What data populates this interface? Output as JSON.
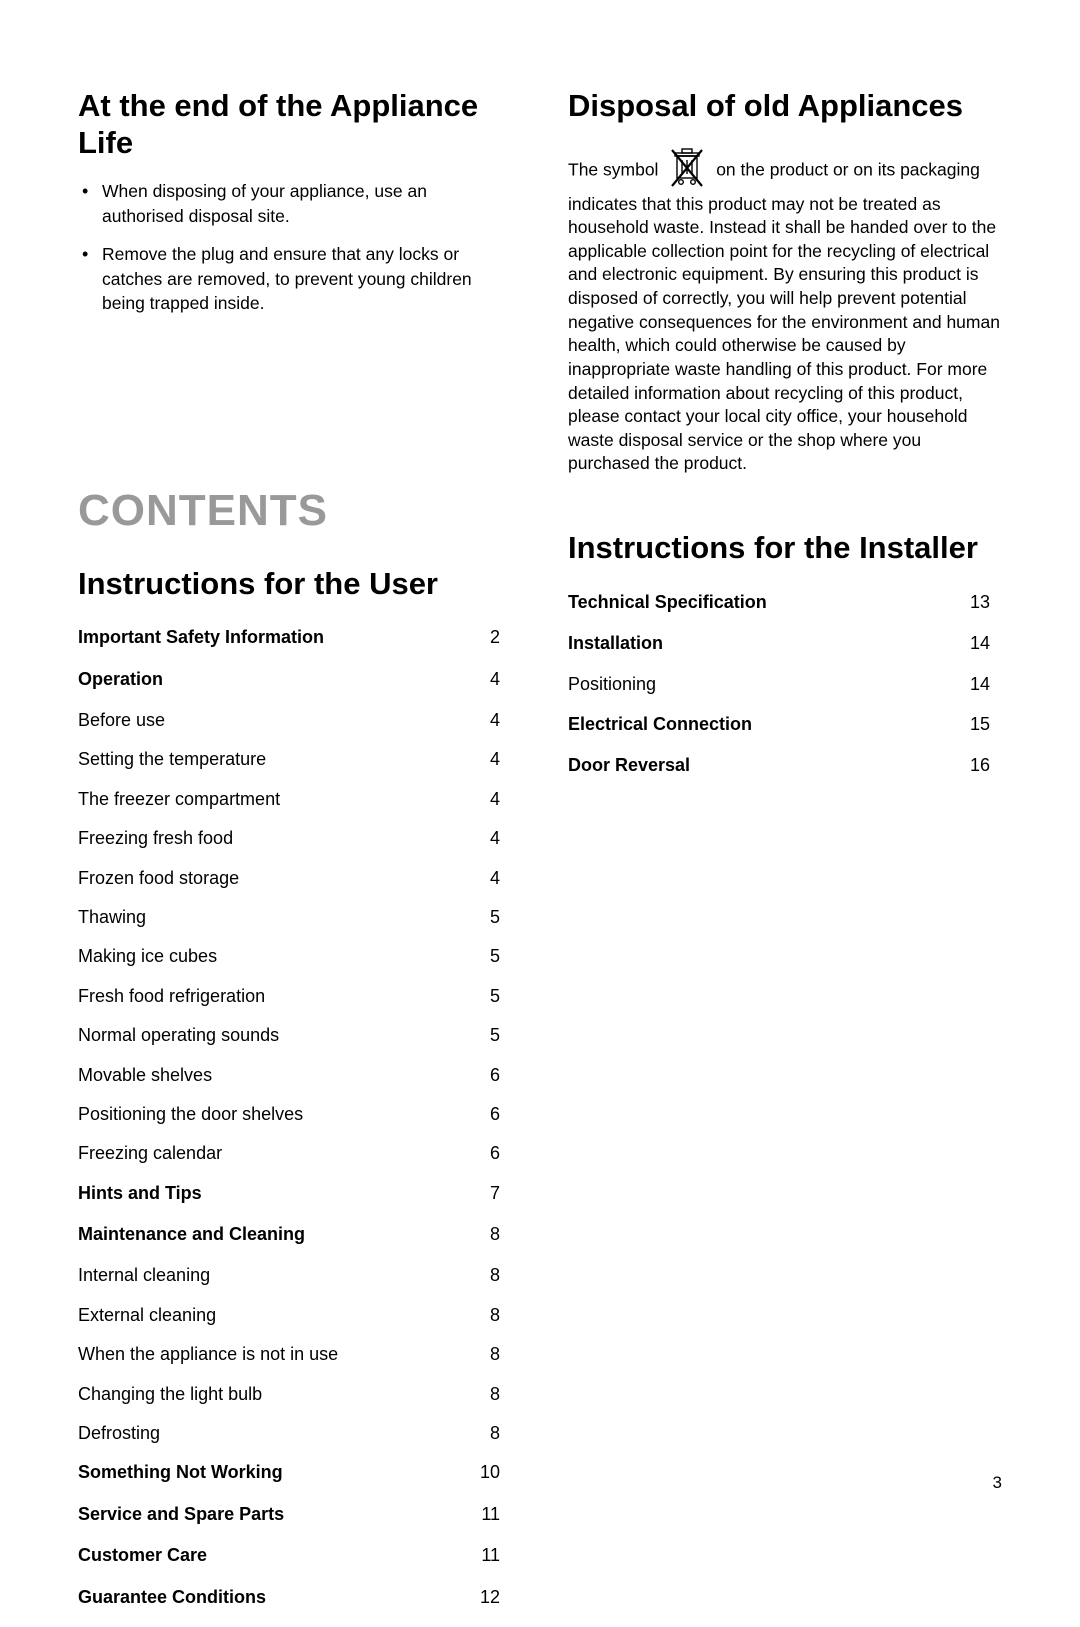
{
  "page_number": "3",
  "leftColumn": {
    "applianceLife": {
      "title": "At the end of the Appliance Life",
      "bullets": [
        "When disposing of your appliance, use an authorised disposal site.",
        "Remove the plug and ensure that any locks or catches are removed, to prevent young children being trapped inside."
      ]
    },
    "contents_title": "CONTENTS",
    "user_instructions_title": "Instructions for the User",
    "toc_user": [
      {
        "label": "Important Safety Information",
        "page": "2",
        "bold": true
      },
      {
        "label": "Operation",
        "page": "4",
        "bold": true
      },
      {
        "label": "Before use",
        "page": "4",
        "bold": false
      },
      {
        "label": "Setting the temperature",
        "page": "4",
        "bold": false
      },
      {
        "label": "The freezer compartment",
        "page": "4",
        "bold": false
      },
      {
        "label": "Freezing fresh food",
        "page": "4",
        "bold": false
      },
      {
        "label": "Frozen food storage",
        "page": "4",
        "bold": false
      },
      {
        "label": "Thawing",
        "page": "5",
        "bold": false
      },
      {
        "label": "Making ice cubes",
        "page": "5",
        "bold": false
      },
      {
        "label": "Fresh food refrigeration",
        "page": "5",
        "bold": false
      },
      {
        "label": "Normal operating sounds",
        "page": "5",
        "bold": false
      },
      {
        "label": "Movable shelves",
        "page": "6",
        "bold": false
      },
      {
        "label": "Positioning the door shelves",
        "page": "6",
        "bold": false
      },
      {
        "label": "Freezing calendar",
        "page": "6",
        "bold": false
      },
      {
        "label": "Hints and Tips",
        "page": "7",
        "bold": true
      },
      {
        "label": "Maintenance and Cleaning",
        "page": "8",
        "bold": true
      },
      {
        "label": "Internal cleaning",
        "page": "8",
        "bold": false
      },
      {
        "label": "External cleaning",
        "page": "8",
        "bold": false
      },
      {
        "label": "When the appliance is not in use",
        "page": "8",
        "bold": false
      },
      {
        "label": "Changing the light bulb",
        "page": "8",
        "bold": false
      },
      {
        "label": "Defrosting",
        "page": "8",
        "bold": false
      },
      {
        "label": "Something Not Working",
        "page": "10",
        "bold": true
      },
      {
        "label": "Service and Spare Parts",
        "page": "11",
        "bold": true
      },
      {
        "label": "Customer Care",
        "page": "11",
        "bold": true
      },
      {
        "label": "Guarantee Conditions",
        "page": "12",
        "bold": true
      }
    ]
  },
  "rightColumn": {
    "disposal": {
      "title": "Disposal of old Appliances",
      "text_before": "The symbol",
      "text_after": "on the product or on its packaging indicates that this product may not be treated as household waste. Instead it shall be handed over to the applicable collection point for the recycling of electrical and electronic equipment. By ensuring this product is disposed of correctly, you will help prevent potential negative consequences for the environment and human health, which could otherwise be caused by inappropriate waste handling of this product. For more detailed information about recycling of this product, please contact your local city office, your household waste disposal service or the shop where you purchased the product."
    },
    "installer_title": "Instructions for the Installer",
    "toc_installer": [
      {
        "label": "Technical Specification",
        "page": "13",
        "bold": true
      },
      {
        "label": "Installation",
        "page": "14",
        "bold": true
      },
      {
        "label": "Positioning",
        "page": "14",
        "bold": false
      },
      {
        "label": "Electrical Connection",
        "page": "15",
        "bold": true
      },
      {
        "label": "Door Reversal",
        "page": "16",
        "bold": true
      }
    ]
  },
  "colors": {
    "text": "#000000",
    "contents_heading": "#999999",
    "background": "#ffffff"
  },
  "fonts": {
    "body_size": 17.5,
    "section_title_size": 31,
    "contents_title_size": 44,
    "toc_size": 18
  }
}
